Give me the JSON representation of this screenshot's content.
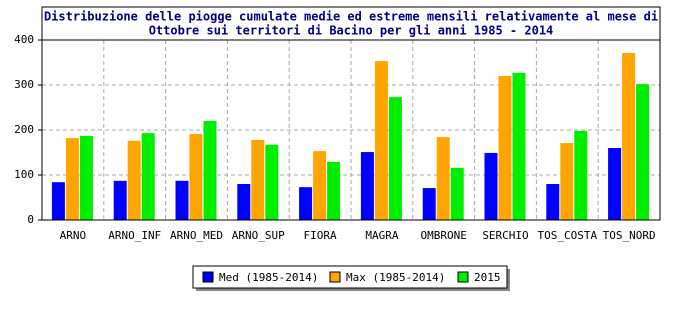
{
  "chart_data": {
    "type": "bar",
    "title": [
      "Distribuzione delle piogge cumulate medie ed estreme mensili relativamente al mese di",
      "Ottobre sui territori di Bacino per gli anni 1985 - 2014"
    ],
    "categories": [
      "ARNO",
      "ARNO_INF",
      "ARNO_MED",
      "ARNO_SUP",
      "FIORA",
      "MAGRA",
      "OMBRONE",
      "SERCHIO",
      "TOS_COSTA",
      "TOS_NORD"
    ],
    "series": [
      {
        "name": "Med (1985-2014)",
        "color": "#0000ff",
        "values": [
          84,
          87,
          87,
          80,
          73,
          151,
          71,
          149,
          80,
          160
        ]
      },
      {
        "name": "Max (1985-2014)",
        "color": "#ffa500",
        "values": [
          182,
          176,
          191,
          178,
          153,
          353,
          184,
          320,
          171,
          371
        ]
      },
      {
        "name": "2015",
        "color": "#00ee00",
        "values": [
          187,
          193,
          220,
          167,
          129,
          273,
          116,
          327,
          198,
          302
        ]
      }
    ],
    "ylim": [
      0,
      400
    ],
    "yticks": [
      0,
      100,
      200,
      300,
      400
    ],
    "grid": true
  }
}
